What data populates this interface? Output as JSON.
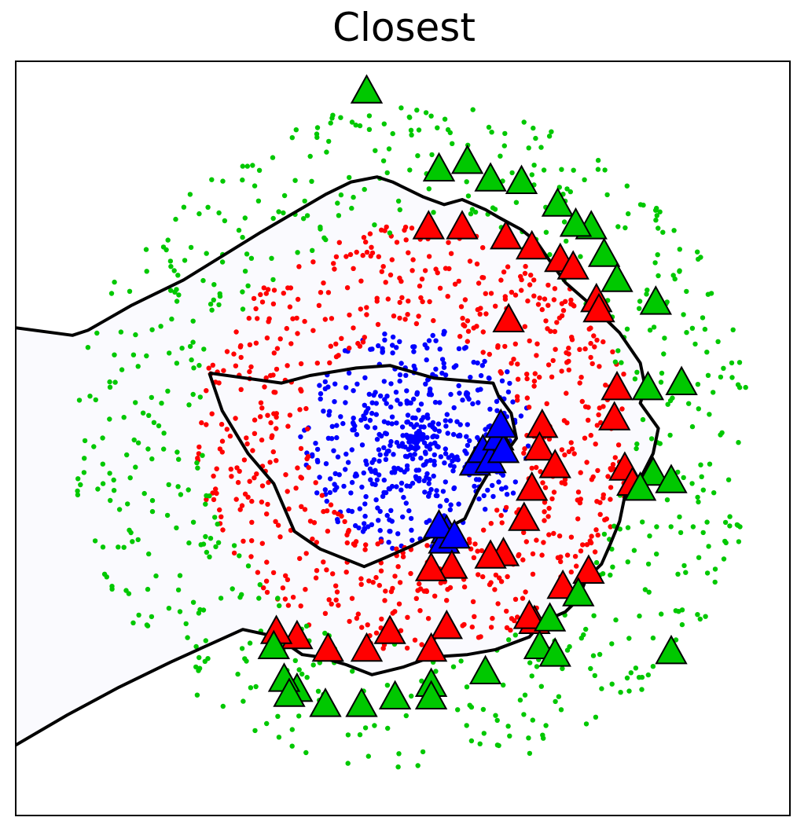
{
  "chart_data": {
    "type": "scatter",
    "title": "Closest",
    "xlabel": "",
    "ylabel": "",
    "xlim": [
      -1.5,
      1.5
    ],
    "ylim": [
      -1.5,
      1.5
    ],
    "ticks": false,
    "grid": false,
    "colors": {
      "inner": "#0000ff",
      "middle": "#ff0000",
      "outer": "#00c800",
      "boundary": "#000000",
      "shade": "#f0f0fc"
    },
    "series": [
      {
        "class": "inner",
        "kind": "points",
        "count": 520,
        "center": [
          0.05,
          0.0
        ],
        "radius": [
          0.0,
          0.45
        ]
      },
      {
        "class": "middle",
        "kind": "points",
        "count": 700,
        "center": [
          0.05,
          0.0
        ],
        "radius": [
          0.42,
          0.85
        ]
      },
      {
        "class": "outer",
        "kind": "points",
        "count": 650,
        "center": [
          0.05,
          0.0
        ],
        "radius": [
          0.82,
          1.33
        ]
      }
    ],
    "prototypes": {
      "inner": [
        [
          0.28,
          -0.1
        ],
        [
          0.31,
          -0.05
        ],
        [
          0.34,
          -0.09
        ],
        [
          0.37,
          0.0
        ],
        [
          0.39,
          -0.05
        ],
        [
          0.38,
          0.05
        ],
        [
          0.17,
          -0.37
        ],
        [
          0.16,
          -0.41
        ],
        [
          0.14,
          -0.35
        ],
        [
          0.2,
          -0.39
        ]
      ],
      "middle": [
        [
          0.1,
          0.84
        ],
        [
          0.23,
          0.84
        ],
        [
          0.4,
          0.8
        ],
        [
          0.5,
          0.76
        ],
        [
          0.61,
          0.71
        ],
        [
          0.66,
          0.68
        ],
        [
          0.75,
          0.55
        ],
        [
          0.76,
          0.51
        ],
        [
          0.41,
          0.47
        ],
        [
          0.83,
          0.2
        ],
        [
          0.82,
          0.08
        ],
        [
          0.54,
          0.05
        ],
        [
          0.53,
          -0.04
        ],
        [
          0.59,
          -0.11
        ],
        [
          0.86,
          -0.12
        ],
        [
          0.89,
          -0.18
        ],
        [
          0.5,
          -0.2
        ],
        [
          0.47,
          -0.32
        ],
        [
          0.72,
          -0.53
        ],
        [
          0.62,
          -0.59
        ],
        [
          0.51,
          -0.73
        ],
        [
          0.49,
          -0.71
        ],
        [
          0.39,
          -0.46
        ],
        [
          0.34,
          -0.47
        ],
        [
          0.19,
          -0.51
        ],
        [
          0.11,
          -0.52
        ],
        [
          0.17,
          -0.75
        ],
        [
          0.11,
          -0.84
        ],
        [
          -0.05,
          -0.77
        ],
        [
          -0.14,
          -0.84
        ],
        [
          -0.29,
          -0.84
        ],
        [
          -0.41,
          -0.79
        ],
        [
          -0.49,
          -0.77
        ]
      ],
      "outer": [
        [
          -0.14,
          1.38
        ],
        [
          0.14,
          1.07
        ],
        [
          0.25,
          1.1
        ],
        [
          0.34,
          1.03
        ],
        [
          0.46,
          1.02
        ],
        [
          0.6,
          0.93
        ],
        [
          0.73,
          0.84
        ],
        [
          0.67,
          0.85
        ],
        [
          0.78,
          0.73
        ],
        [
          0.83,
          0.63
        ],
        [
          0.98,
          0.54
        ],
        [
          0.95,
          0.2
        ],
        [
          1.08,
          0.22
        ],
        [
          0.97,
          -0.14
        ],
        [
          0.92,
          -0.2
        ],
        [
          1.04,
          -0.17
        ],
        [
          0.68,
          -0.62
        ],
        [
          0.57,
          -0.72
        ],
        [
          0.53,
          -0.83
        ],
        [
          0.59,
          -0.86
        ],
        [
          1.04,
          -0.85
        ],
        [
          0.32,
          -0.93
        ],
        [
          0.11,
          -0.98
        ],
        [
          0.11,
          -1.03
        ],
        [
          -0.03,
          -1.03
        ],
        [
          -0.16,
          -1.06
        ],
        [
          -0.3,
          -1.06
        ],
        [
          -0.41,
          -1.0
        ],
        [
          -0.46,
          -0.96
        ],
        [
          -0.44,
          -1.02
        ],
        [
          -0.5,
          -0.83
        ]
      ]
    },
    "boundaries": {
      "inner_middle": [
        [
          -0.75,
          0.26
        ],
        [
          -0.47,
          0.22
        ],
        [
          -0.36,
          0.25
        ],
        [
          -0.18,
          0.28
        ],
        [
          -0.05,
          0.29
        ],
        [
          0.12,
          0.24
        ],
        [
          0.35,
          0.22
        ],
        [
          0.37,
          0.17
        ],
        [
          0.42,
          0.1
        ],
        [
          0.44,
          0.0
        ],
        [
          0.37,
          -0.1
        ],
        [
          0.33,
          -0.14
        ],
        [
          0.29,
          -0.21
        ],
        [
          0.24,
          -0.32
        ],
        [
          0.11,
          -0.39
        ],
        [
          0.03,
          -0.43
        ],
        [
          -0.08,
          -0.48
        ],
        [
          -0.15,
          -0.51
        ],
        [
          -0.32,
          -0.44
        ],
        [
          -0.42,
          -0.37
        ],
        [
          -0.5,
          -0.18
        ],
        [
          -0.6,
          -0.06
        ],
        [
          -0.7,
          0.11
        ],
        [
          -0.75,
          0.26
        ]
      ],
      "middle_outer": [
        [
          -1.5,
          0.44
        ],
        [
          -1.28,
          0.41
        ],
        [
          -1.22,
          0.43
        ],
        [
          -1.05,
          0.53
        ],
        [
          -0.85,
          0.63
        ],
        [
          -0.55,
          0.82
        ],
        [
          -0.3,
          0.97
        ],
        [
          -0.2,
          1.02
        ],
        [
          -0.1,
          1.04
        ],
        [
          -0.04,
          1.02
        ],
        [
          0.08,
          0.96
        ],
        [
          0.16,
          0.93
        ],
        [
          0.23,
          0.95
        ],
        [
          0.32,
          0.91
        ],
        [
          0.37,
          0.88
        ],
        [
          0.46,
          0.83
        ],
        [
          0.52,
          0.78
        ],
        [
          0.56,
          0.72
        ],
        [
          0.63,
          0.62
        ],
        [
          0.73,
          0.53
        ],
        [
          0.84,
          0.42
        ],
        [
          0.92,
          0.3
        ],
        [
          0.94,
          0.2
        ],
        [
          0.92,
          0.14
        ],
        [
          0.99,
          0.04
        ],
        [
          0.97,
          -0.06
        ],
        [
          0.93,
          -0.14
        ],
        [
          0.86,
          -0.23
        ],
        [
          0.84,
          -0.33
        ],
        [
          0.8,
          -0.43
        ],
        [
          0.77,
          -0.5
        ],
        [
          0.71,
          -0.56
        ],
        [
          0.68,
          -0.64
        ],
        [
          0.63,
          -0.69
        ],
        [
          0.54,
          -0.73
        ],
        [
          0.49,
          -0.79
        ],
        [
          0.36,
          -0.84
        ],
        [
          0.25,
          -0.86
        ],
        [
          0.11,
          -0.87
        ],
        [
          0.0,
          -0.91
        ],
        [
          -0.12,
          -0.94
        ],
        [
          -0.22,
          -0.9
        ],
        [
          -0.32,
          -0.87
        ],
        [
          -0.39,
          -0.86
        ],
        [
          -0.46,
          -0.81
        ],
        [
          -0.53,
          -0.78
        ],
        [
          -0.62,
          -0.76
        ],
        [
          -0.75,
          -0.82
        ],
        [
          -0.9,
          -0.89
        ],
        [
          -1.1,
          -0.99
        ],
        [
          -1.3,
          -1.1
        ],
        [
          -1.5,
          -1.22
        ]
      ]
    }
  }
}
